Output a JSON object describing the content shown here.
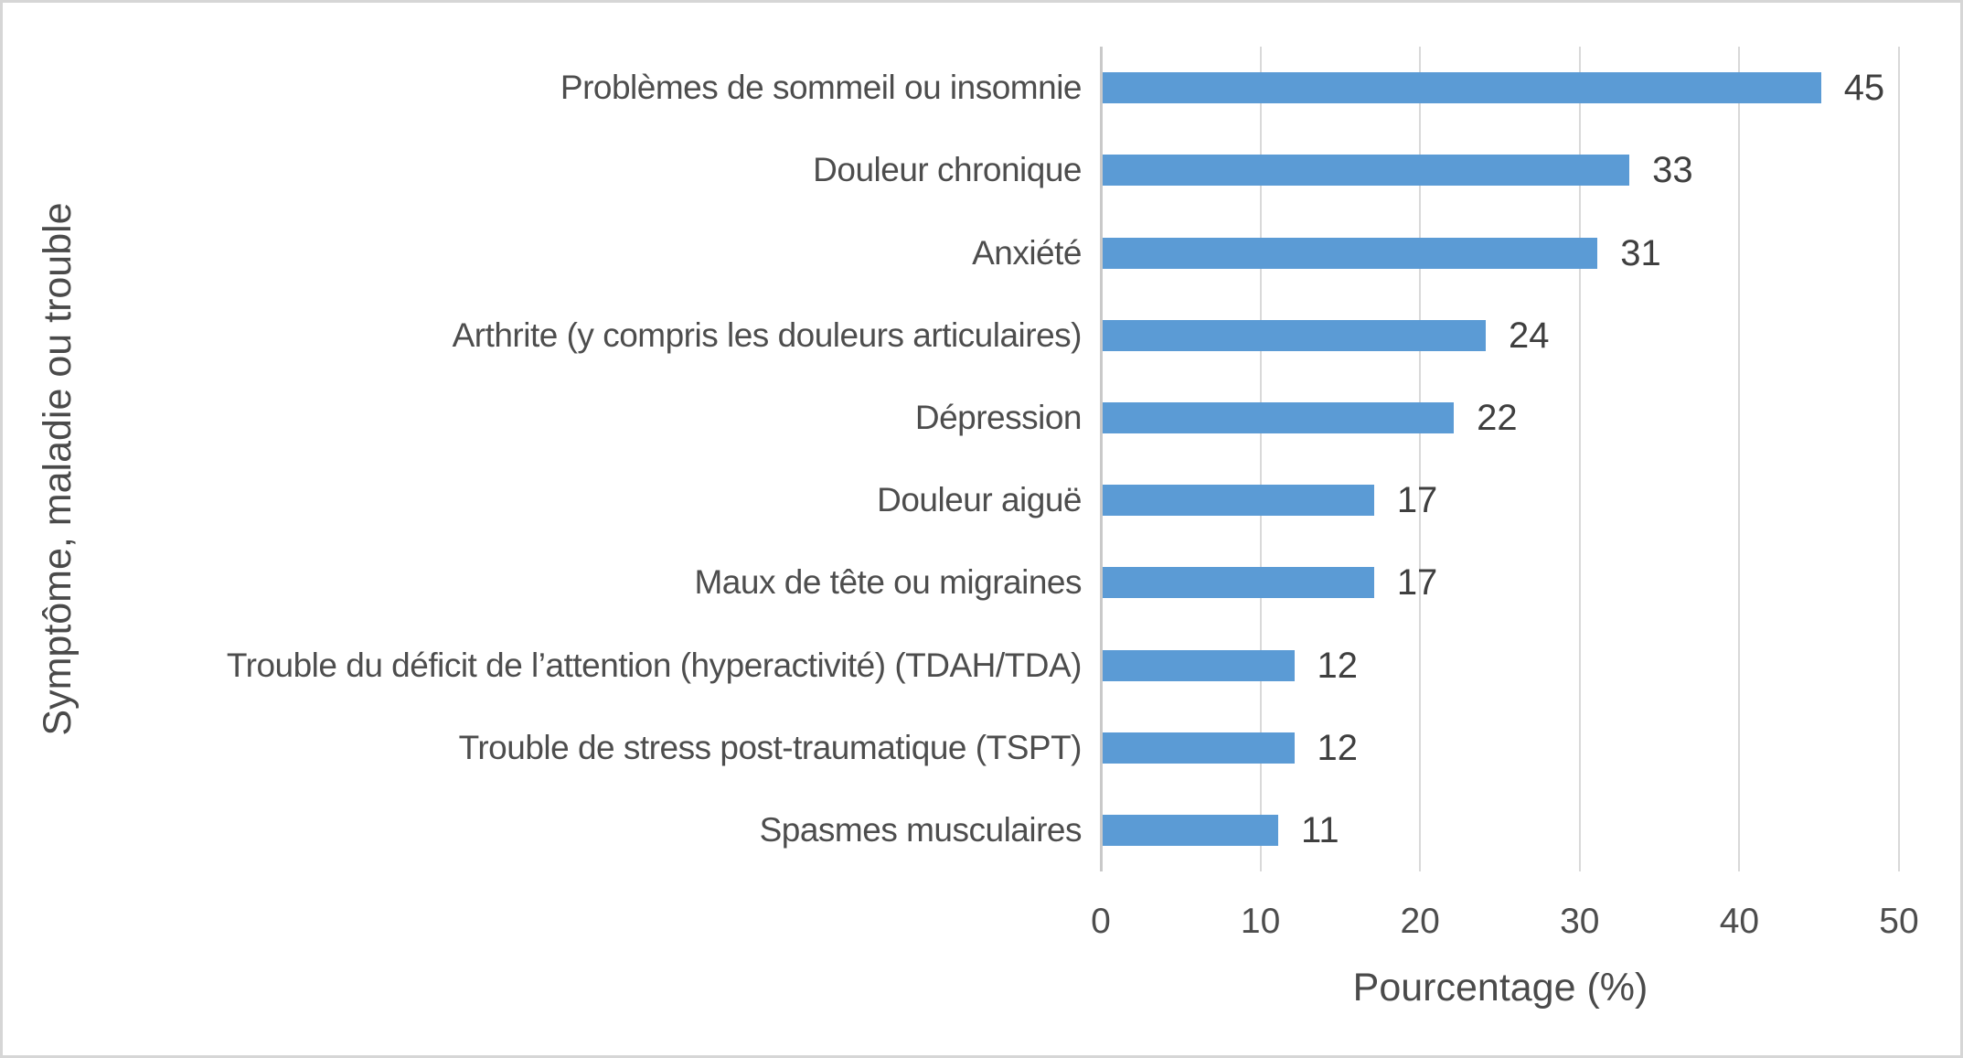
{
  "chart_data": {
    "type": "bar",
    "orientation": "horizontal",
    "categories": [
      "Problèmes de sommeil ou insomnie",
      "Douleur chronique",
      "Anxiété",
      "Arthrite (y compris les douleurs articulaires)",
      "Dépression",
      "Douleur aiguë",
      "Maux de tête ou migraines",
      "Trouble du déficit de l’attention (hyperactivité) (TDAH/TDA)",
      "Trouble de stress post-traumatique (TSPT)",
      "Spasmes musculaires"
    ],
    "values": [
      45,
      33,
      31,
      24,
      22,
      17,
      17,
      12,
      12,
      11
    ],
    "value_labels_shown": true,
    "title": "",
    "xlabel": "Pourcentage (%)",
    "ylabel": "Symptôme, maladie ou trouble",
    "xlim": [
      0,
      50
    ],
    "xticks": [
      0,
      10,
      20,
      30,
      40,
      50
    ],
    "grid": "vertical-gridlines-on",
    "legend": "none"
  },
  "colors": {
    "bar_fill": "#5B9BD5",
    "gridline": "#D9D9D9",
    "axis_line": "#C9C9C9",
    "label_text": "#4D4D4D",
    "value_text": "#3F3F3F",
    "figure_border": "#D6D6D6",
    "background": "#FFFFFF"
  }
}
